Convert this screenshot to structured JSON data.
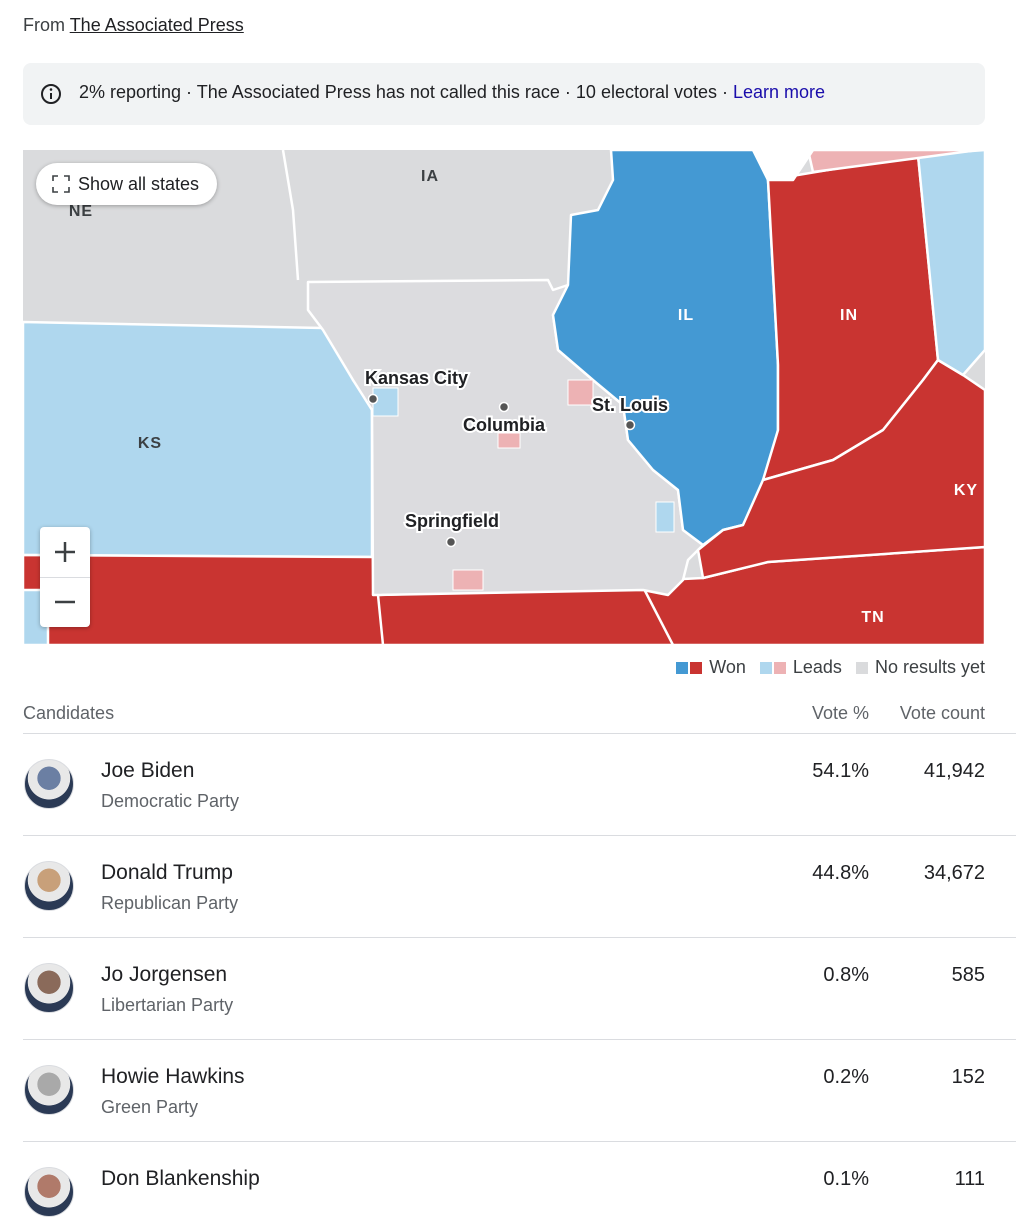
{
  "source": {
    "prefix": "From",
    "name": "The Associated Press"
  },
  "status": {
    "text": "2% reporting · The Associated Press has not called this race · 10 electoral votes ·",
    "link": "Learn more"
  },
  "map": {
    "button": "Show all states",
    "states": {
      "ia": "IA",
      "ne": "NE",
      "il": "IL",
      "in": "IN",
      "ks": "KS",
      "ky": "KY",
      "tn": "TN"
    },
    "cities": {
      "kc": "Kansas City",
      "col": "Columbia",
      "stl": "St. Louis",
      "spr": "Springfield"
    }
  },
  "legend": {
    "won": "Won",
    "leads": "Leads",
    "none": "No results yet"
  },
  "table": {
    "headers": {
      "candidates": "Candidates",
      "pct": "Vote %",
      "count": "Vote count"
    },
    "rows": [
      {
        "name": "Joe Biden",
        "party": "Democratic Party",
        "pct": "54.1%",
        "count": "41,942"
      },
      {
        "name": "Donald Trump",
        "party": "Republican Party",
        "pct": "44.8%",
        "count": "34,672"
      },
      {
        "name": "Jo Jorgensen",
        "party": "Libertarian Party",
        "pct": "0.8%",
        "count": "585"
      },
      {
        "name": "Howie Hawkins",
        "party": "Green Party",
        "pct": "0.2%",
        "count": "152"
      },
      {
        "name": "Don Blankenship",
        "party": "",
        "pct": "0.1%",
        "count": "111"
      }
    ]
  }
}
